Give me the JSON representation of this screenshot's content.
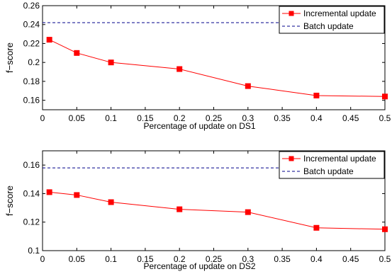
{
  "chart_data": [
    {
      "type": "line",
      "title": "",
      "xlabel": "Percentage of update on DS1",
      "ylabel": "f−score",
      "x": [
        0.01,
        0.05,
        0.1,
        0.2,
        0.3,
        0.4,
        0.5
      ],
      "xlim": [
        0,
        0.5
      ],
      "ylim": [
        0.15,
        0.26
      ],
      "xticks": [
        0,
        0.05,
        0.1,
        0.15,
        0.2,
        0.25,
        0.3,
        0.35,
        0.4,
        0.45,
        0.5
      ],
      "xtick_labels": [
        "0",
        "0.05",
        "0.1",
        "0.15",
        "0.2",
        "0.25",
        "0.3",
        "0.35",
        "0.4",
        "0.45",
        "0.5"
      ],
      "yticks": [
        0.16,
        0.18,
        0.2,
        0.22,
        0.24,
        0.26
      ],
      "ytick_labels": [
        "0.16",
        "0.18",
        "0.2",
        "0.22",
        "0.24",
        "0.26"
      ],
      "grid": false,
      "legend_position": "top-right",
      "series": [
        {
          "name": "Incremental update",
          "color": "#ff0000",
          "style": "solid",
          "marker": "square",
          "values": [
            0.224,
            0.21,
            0.2,
            0.193,
            0.175,
            0.165,
            0.164
          ]
        },
        {
          "name": "Batch update",
          "color": "#00008b",
          "style": "dashed",
          "marker": "none",
          "values": [
            0.242,
            0.242,
            0.242,
            0.242,
            0.242,
            0.242,
            0.242
          ]
        }
      ]
    },
    {
      "type": "line",
      "title": "",
      "xlabel": "Percentage of update on DS2",
      "ylabel": "f−score",
      "x": [
        0.01,
        0.05,
        0.1,
        0.2,
        0.3,
        0.4,
        0.5
      ],
      "xlim": [
        0,
        0.5
      ],
      "ylim": [
        0.1,
        0.17
      ],
      "xticks": [
        0,
        0.05,
        0.1,
        0.15,
        0.2,
        0.25,
        0.3,
        0.35,
        0.4,
        0.45,
        0.5
      ],
      "xtick_labels": [
        "0",
        "0.05",
        "0.1",
        "0.15",
        "0.2",
        "0.25",
        "0.3",
        "0.35",
        "0.4",
        "0.45",
        "0.5"
      ],
      "yticks": [
        0.1,
        0.12,
        0.14,
        0.16
      ],
      "ytick_labels": [
        "0.1",
        "0.12",
        "0.14",
        "0.16"
      ],
      "grid": false,
      "legend_position": "top-right",
      "series": [
        {
          "name": "Incremental update",
          "color": "#ff0000",
          "style": "solid",
          "marker": "square",
          "values": [
            0.141,
            0.139,
            0.134,
            0.129,
            0.127,
            0.116,
            0.115
          ]
        },
        {
          "name": "Batch update",
          "color": "#00008b",
          "style": "dashed",
          "marker": "none",
          "values": [
            0.158,
            0.158,
            0.158,
            0.158,
            0.158,
            0.158,
            0.158
          ]
        }
      ]
    }
  ]
}
